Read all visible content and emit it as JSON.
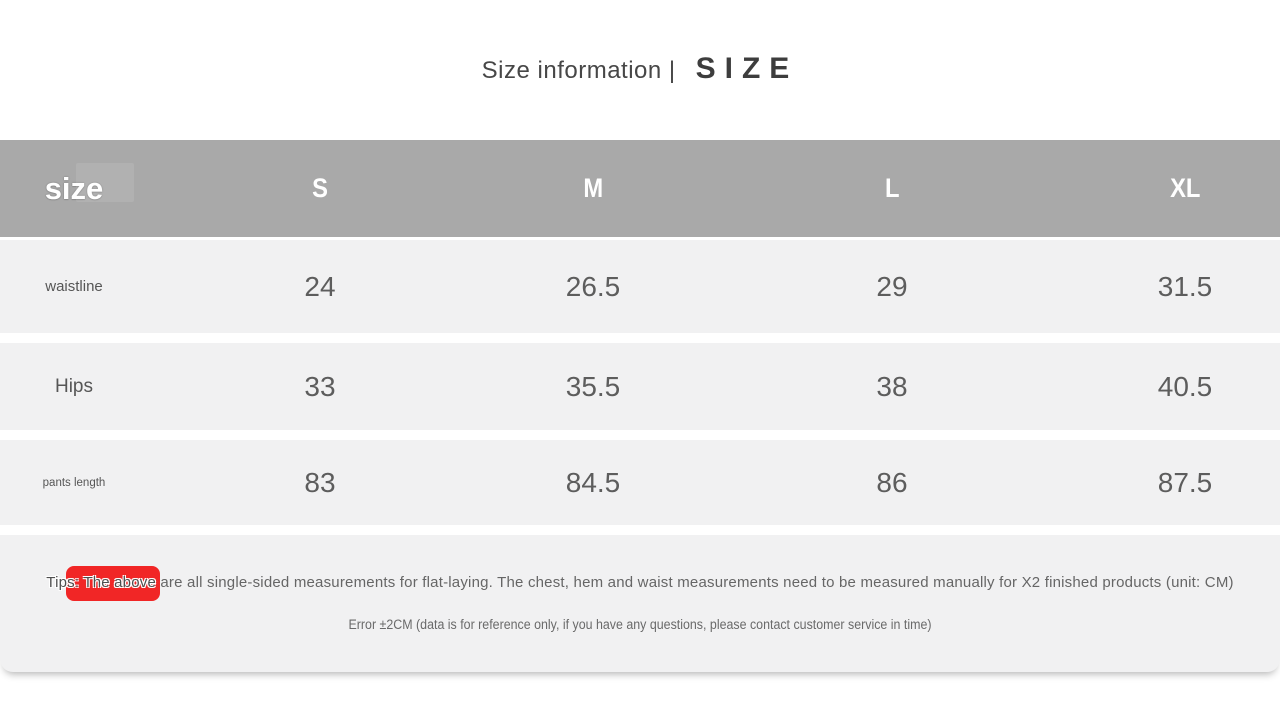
{
  "title": {
    "main": "Size information |",
    "accent": "SIZE"
  },
  "size_chart": {
    "corner_label": "size",
    "columns": [
      "S",
      "M",
      "L",
      "XL"
    ],
    "rows": [
      {
        "label": "waistline",
        "values": [
          "24",
          "26.5",
          "29",
          "31.5"
        ]
      },
      {
        "label": "Hips",
        "values": [
          "33",
          "35.5",
          "38",
          "40.5"
        ]
      },
      {
        "label": "pants length",
        "values": [
          "83",
          "84.5",
          "86",
          "87.5"
        ]
      }
    ]
  },
  "tips": {
    "highlight": "Tips: The above",
    "line1_rest": " are all single-sided measurements for flat-laying. The chest, hem and waist measurements need to be measured manually for X2 finished products (unit: CM)",
    "line2": "Error ±2CM (data is for reference only, if you have any questions, please contact customer service in time)"
  },
  "colors": {
    "header_bg": "#a9a9a9",
    "row_bg": "#f1f1f2",
    "badge_red": "#f12626",
    "value_text": "#5d5d5d",
    "title_text": "#3d3d3d"
  }
}
